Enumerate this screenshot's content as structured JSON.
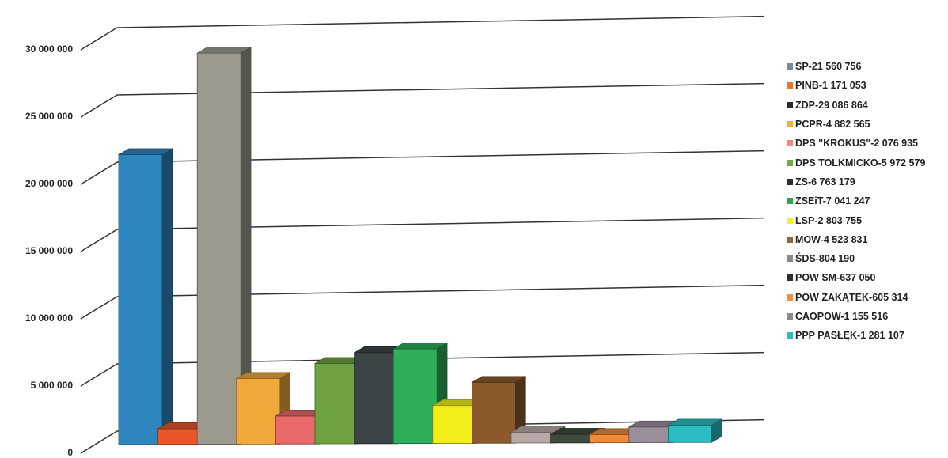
{
  "chart_data": {
    "type": "bar",
    "style": "3d",
    "ylim": [
      0,
      30000000
    ],
    "yticks": [
      0,
      5000000,
      10000000,
      15000000,
      20000000,
      25000000,
      30000000
    ],
    "ytick_labels": [
      "0",
      "5 000 000",
      "10 000 000",
      "15 000 000",
      "20 000 000",
      "25 000 000",
      "30 000 000"
    ],
    "grid": true,
    "legend_position": "right",
    "categories": [
      "SP",
      "PINB",
      "ZDP",
      "PCPR",
      "DPS \"KROKUS\"",
      "DPS TOLKMICKO",
      "ZS",
      "ZSEiT",
      "LSP",
      "MOW",
      "ŚDS",
      "POW SM",
      "POW ZAKĄTEK",
      "CAOPOW",
      "PPP PASŁĘK"
    ],
    "values": [
      21560756,
      1171053,
      29086864,
      4882565,
      2076935,
      5972579,
      6763179,
      7041247,
      2803755,
      4523831,
      804190,
      637050,
      605314,
      1155516,
      1281107
    ],
    "colors": [
      "#2e86bf",
      "#e8562a",
      "#9c9a8e",
      "#f0a83a",
      "#e86a6a",
      "#6fa33f",
      "#3d4448",
      "#2dae58",
      "#f2ee1a",
      "#8a5a2c",
      "#b8a8a8",
      "#3e4a3e",
      "#f08a3a",
      "#9a8e9a",
      "#2cbcc4"
    ],
    "legend": [
      "SP-21 560 756",
      "PINB-1 171 053",
      "ZDP-29 086 864",
      "PCPR-4 882 565",
      "DPS \"KROKUS\"-2 076 935",
      "DPS TOLKMICKO-5 972 579",
      "ZS-6 763 179",
      "ZSEiT-7 041 247",
      "LSP-2 803 755",
      "MOW-4 523 831",
      "ŚDS-804 190",
      "POW SM-637 050",
      "POW ZAKĄTEK-605 314",
      "CAOPOW-1 155 516",
      "PPP PASŁĘK-1 281 107"
    ],
    "legend_colors": [
      "#7a8a94",
      "#e8762e",
      "#2a2a2a",
      "#f2b13a",
      "#ee8a82",
      "#76a844",
      "#2c2c2c",
      "#2aa650",
      "#f4f22a",
      "#8b6a48",
      "#8a8a8a",
      "#2e2e2e",
      "#f29040",
      "#8e8a8e",
      "#2abac2"
    ]
  }
}
